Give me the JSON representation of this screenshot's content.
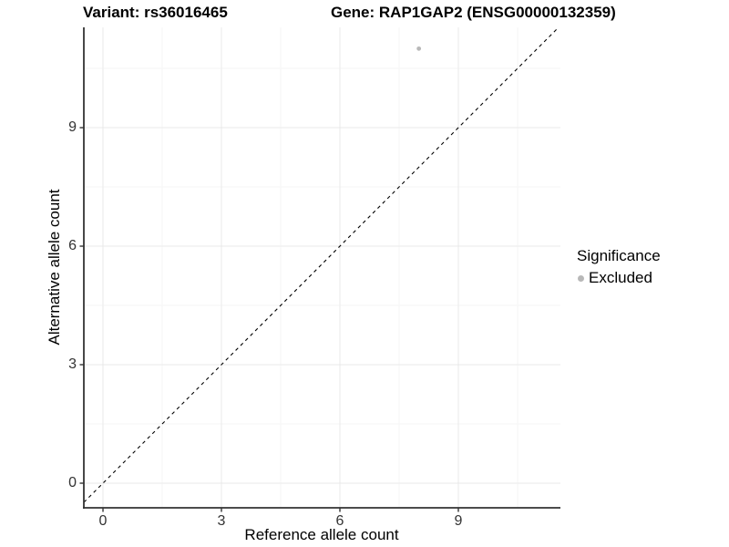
{
  "chart_data": {
    "type": "scatter",
    "titles": {
      "left": "Variant: rs36016465",
      "right": "Gene: RAP1GAP2 (ENSG00000132359)"
    },
    "xlabel": "Reference allele count",
    "ylabel": "Alternative allele count",
    "x_ticks": [
      0,
      3,
      6,
      9
    ],
    "y_ticks": [
      0,
      3,
      6,
      9
    ],
    "xlim": [
      -0.485,
      11.585
    ],
    "ylim": [
      -0.623,
      11.539
    ],
    "minor_tick_offset": 1.5,
    "grid": "major+minor",
    "reference_line": {
      "type": "identity",
      "slope": 1,
      "intercept": 0,
      "style": "dashed",
      "color": "#000000"
    },
    "series": [
      {
        "name": "Excluded",
        "color": "#b8b8b8",
        "points": [
          {
            "x": 8,
            "y": 11
          }
        ]
      }
    ],
    "legend": {
      "title": "Significance",
      "position": "right",
      "items": [
        {
          "label": "Excluded",
          "color": "#b8b8b8"
        }
      ]
    },
    "style": {
      "background": "#ffffff",
      "major_grid": "#e9e9e9",
      "minor_grid": "#f5f5f5",
      "axis_line": "#333333",
      "tick_color": "#333333",
      "tick_text_color": "#333333",
      "title_text_color": "#000000"
    }
  }
}
